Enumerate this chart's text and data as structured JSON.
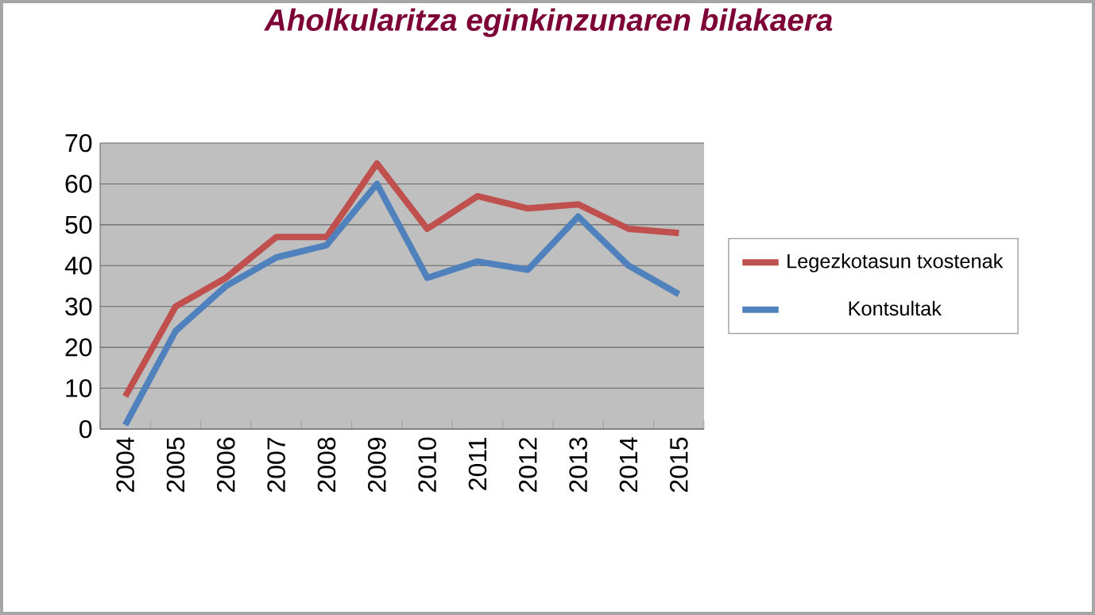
{
  "chart_data": {
    "type": "line",
    "title": "Aholkularitza eginkinzunaren bilakaera",
    "categories": [
      "2004",
      "2005",
      "2006",
      "2007",
      "2008",
      "2009",
      "2010",
      "2011",
      "2012",
      "2013",
      "2014",
      "2015"
    ],
    "series": [
      {
        "name": "Legezkotasun txostenak",
        "color": "#c0504d",
        "values": [
          8,
          30,
          37,
          47,
          47,
          65,
          49,
          57,
          54,
          55,
          49,
          48
        ]
      },
      {
        "name": "Kontsultak",
        "color": "#4f81bd",
        "values": [
          1,
          24,
          35,
          42,
          45,
          60,
          37,
          41,
          39,
          52,
          40,
          33
        ]
      }
    ],
    "ylim": [
      0,
      70
    ],
    "yticks": [
      0,
      10,
      20,
      30,
      40,
      50,
      60,
      70
    ],
    "grid": "y",
    "legend": "right",
    "marker": "none",
    "line_style": "solid"
  }
}
